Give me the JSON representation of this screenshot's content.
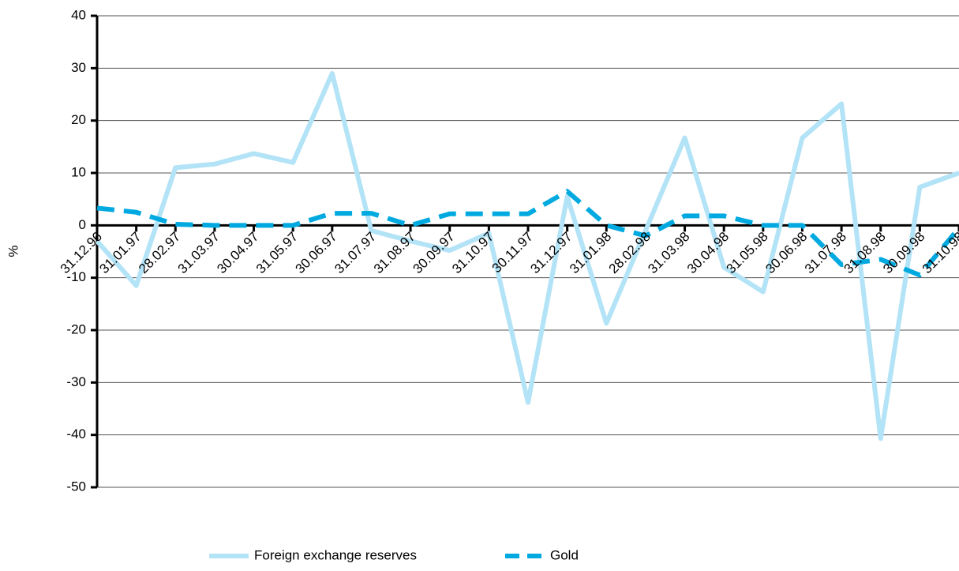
{
  "chart_data": {
    "type": "line",
    "y_label": "%",
    "categories": [
      "31.12.96",
      "31.01.97",
      "28.02.97",
      "31.03.97",
      "30.04.97",
      "31.05.97",
      "30.06.97",
      "31.07.97",
      "31.08.97",
      "30.09.97",
      "31.10.97",
      "30.11.97",
      "31.12.97",
      "31.01.98",
      "28.02.98",
      "31.03.98",
      "30.04.98",
      "31.05.98",
      "30.06.98",
      "31.07.98",
      "31.08.98",
      "30.09.98",
      "31.10.98"
    ],
    "series": [
      {
        "name": "Foreign exchange reserves",
        "color": "#b3e3f6",
        "dashed": false,
        "values": [
          -3,
          -11.5,
          11,
          11.7,
          13.7,
          12,
          29,
          -1,
          -3,
          -4.8,
          -1.5,
          -33.8,
          5.5,
          -18.7,
          -1,
          16.7,
          -8,
          -12.7,
          16.7,
          23.2,
          -40.7,
          7.3,
          10
        ]
      },
      {
        "name": "Gold",
        "color": "#00a9e0",
        "dashed": true,
        "values": [
          3.3,
          2.5,
          0.2,
          0,
          0,
          0,
          2.3,
          2.3,
          0,
          2.2,
          2.2,
          2.2,
          6.5,
          0,
          -2,
          1.8,
          1.8,
          0,
          0,
          -7.5,
          -6.5,
          -9.5,
          -0.5
        ]
      }
    ],
    "ylim": [
      -50,
      40
    ],
    "yticks": [
      -50,
      -40,
      -30,
      -20,
      -10,
      0,
      10,
      20,
      30,
      40
    ],
    "grid": true
  }
}
